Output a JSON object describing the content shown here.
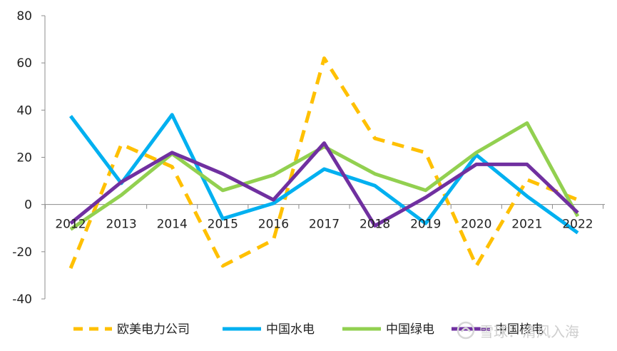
{
  "chart_data": {
    "type": "line",
    "categories": [
      "2012",
      "2013",
      "2014",
      "2015",
      "2016",
      "2017",
      "2018",
      "2019",
      "2020",
      "2021",
      "2022"
    ],
    "yticks": [
      80,
      60,
      40,
      20,
      0,
      -20,
      -40
    ],
    "ylim": [
      -40,
      80
    ],
    "grid": false,
    "legend_position": "bottom",
    "series": [
      {
        "name": "欧美电力公司",
        "color": "#FFC000",
        "dash": true,
        "values": [
          -27,
          25.5,
          16,
          -26,
          -15,
          62,
          28,
          22,
          -26,
          10.5,
          2
        ]
      },
      {
        "name": "中国水电",
        "color": "#00B0F0",
        "dash": false,
        "values": [
          37.5,
          9,
          38,
          -6,
          0.5,
          15,
          8,
          -8,
          21,
          3.5,
          -12
        ]
      },
      {
        "name": "中国绿电",
        "color": "#92D050",
        "dash": false,
        "values": [
          -10.5,
          4,
          21.5,
          6,
          12.5,
          24.5,
          13,
          6,
          22,
          34.5,
          -5
        ]
      },
      {
        "name": "中国核电",
        "color": "#7030A0",
        "dash": false,
        "values": [
          -8,
          9.5,
          22,
          13,
          2,
          26,
          -9,
          3,
          17,
          17,
          -3.5
        ]
      }
    ]
  },
  "watermark": {
    "text": "雪球：清风入海",
    "icon": "snowball-logo-icon"
  }
}
